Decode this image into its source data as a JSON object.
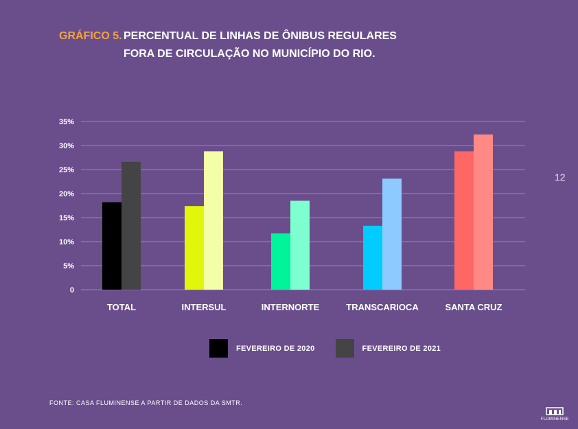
{
  "title": {
    "number": "GRÁFICO 5.",
    "line1": "PERCENTUAL DE LINHAS DE ÔNIBUS REGULARES",
    "line2": "FORA DE CIRCULAÇÃO NO MUNICÍPIO DO RIO."
  },
  "page_number": "12",
  "source": "FONTE: CASA FLUMINENSE A PARTIR DE DADOS DA SMTR.",
  "logo": {
    "text": "FLUMINENSE",
    "icon": "casa-fluminense-logo-icon"
  },
  "legend": [
    {
      "prefix": "FEVEREIRO DE ",
      "year": "2020",
      "color": "#000000"
    },
    {
      "prefix": "FEVEREIRO DE ",
      "year": "2021",
      "color": "#444444"
    }
  ],
  "chart_data": {
    "type": "bar",
    "categories": [
      "TOTAL",
      "INTERSUL",
      "INTERNORTE",
      "TRANSCARIOCA",
      "SANTA CRUZ"
    ],
    "series": [
      {
        "name": "FEVEREIRO DE 2020",
        "values": [
          18.2,
          17.4,
          11.7,
          13.3,
          28.8
        ]
      },
      {
        "name": "FEVEREIRO DE 2021",
        "values": [
          26.6,
          28.8,
          18.5,
          23.1,
          32.3
        ]
      }
    ],
    "colors_2020": [
      "#000000",
      "#e0f70a",
      "#00f59a",
      "#00ccff",
      "#ff6666"
    ],
    "colors_2021": [
      "#444444",
      "#f2ffa6",
      "#7dffd0",
      "#8ccaff",
      "#ff8a85"
    ],
    "ylim": [
      0,
      35
    ],
    "yticks": [
      "0",
      "5%",
      "10%",
      "15%",
      "20%",
      "25%",
      "30%",
      "35%"
    ],
    "grid": true,
    "legend_position": "bottom"
  }
}
